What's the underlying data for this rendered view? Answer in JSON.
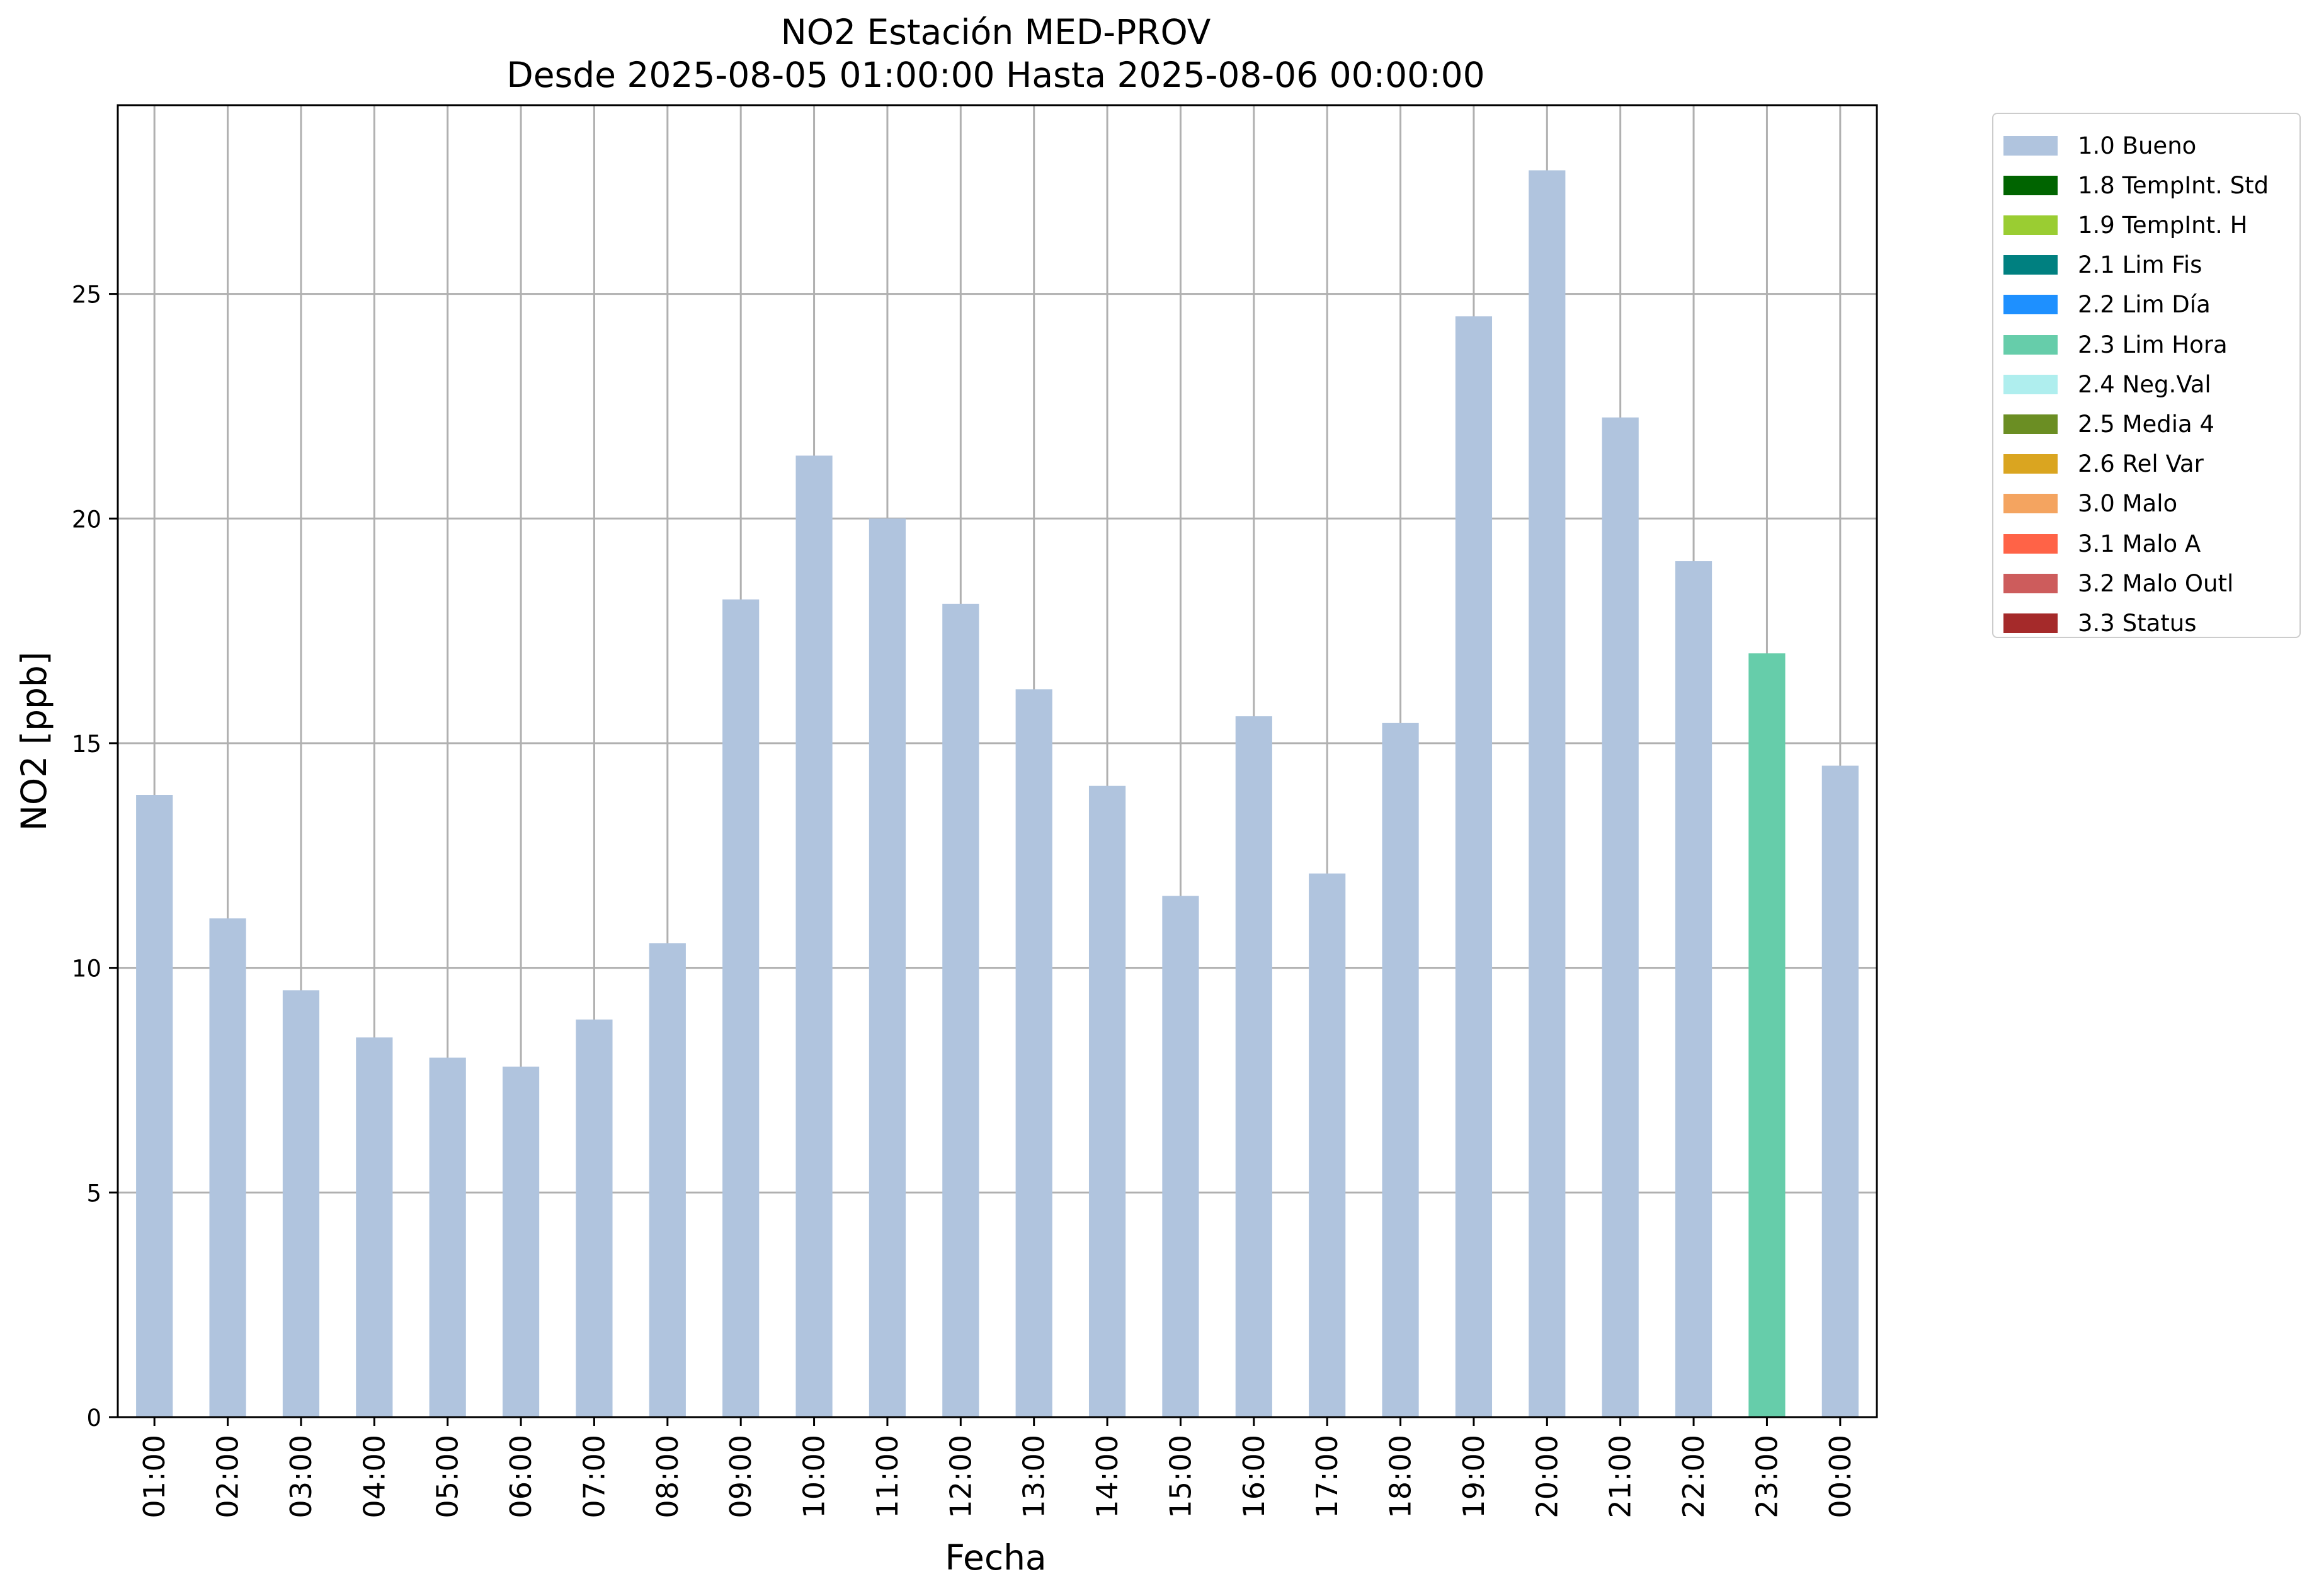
{
  "chart_data": {
    "type": "bar",
    "title": "NO2 Estación MED-PROV",
    "subtitle": "Desde 2025-08-05 01:00:00 Hasta 2025-08-06 00:00:00",
    "xlabel": "Fecha",
    "ylabel": "NO2 [ppb]",
    "ylim": [
      0,
      29.2
    ],
    "yticks": [
      0,
      5,
      10,
      15,
      20,
      25
    ],
    "grid": true,
    "legend_position": "outside-top-right",
    "categories": [
      "01:00",
      "02:00",
      "03:00",
      "04:00",
      "05:00",
      "06:00",
      "07:00",
      "08:00",
      "09:00",
      "10:00",
      "11:00",
      "12:00",
      "13:00",
      "14:00",
      "15:00",
      "16:00",
      "17:00",
      "18:00",
      "19:00",
      "20:00",
      "21:00",
      "22:00",
      "23:00",
      "00:00"
    ],
    "values": [
      13.85,
      11.1,
      9.5,
      8.45,
      8.0,
      7.8,
      8.85,
      10.55,
      18.2,
      21.4,
      20.0,
      18.1,
      16.2,
      14.05,
      11.6,
      15.6,
      12.1,
      15.45,
      24.5,
      27.75,
      22.25,
      19.05,
      17.0,
      14.5
    ],
    "flags": [
      "1.0 Bueno",
      "1.0 Bueno",
      "1.0 Bueno",
      "1.0 Bueno",
      "1.0 Bueno",
      "1.0 Bueno",
      "1.0 Bueno",
      "1.0 Bueno",
      "1.0 Bueno",
      "1.0 Bueno",
      "1.0 Bueno",
      "1.0 Bueno",
      "1.0 Bueno",
      "1.0 Bueno",
      "1.0 Bueno",
      "1.0 Bueno",
      "1.0 Bueno",
      "1.0 Bueno",
      "1.0 Bueno",
      "1.0 Bueno",
      "1.0 Bueno",
      "1.0 Bueno",
      "2.3 Lim Hora",
      "1.0 Bueno"
    ],
    "legend": [
      {
        "label": "1.0 Bueno",
        "color": "#b0c4de"
      },
      {
        "label": "1.8 TempInt. Std",
        "color": "#006400"
      },
      {
        "label": "1.9 TempInt. H",
        "color": "#9acd32"
      },
      {
        "label": "2.1 Lim Fis",
        "color": "#008080"
      },
      {
        "label": "2.2 Lim Día",
        "color": "#1e90ff"
      },
      {
        "label": "2.3 Lim Hora",
        "color": "#66cdaa"
      },
      {
        "label": "2.4 Neg.Val",
        "color": "#afeeee"
      },
      {
        "label": "2.5 Media 4",
        "color": "#6b8e23"
      },
      {
        "label": "2.6 Rel Var",
        "color": "#daa520"
      },
      {
        "label": "3.0 Malo",
        "color": "#f4a460"
      },
      {
        "label": "3.1 Malo A",
        "color": "#ff6347"
      },
      {
        "label": "3.2 Malo Outl",
        "color": "#cd5c5c"
      },
      {
        "label": "3.3 Status",
        "color": "#a52a2a"
      }
    ]
  }
}
